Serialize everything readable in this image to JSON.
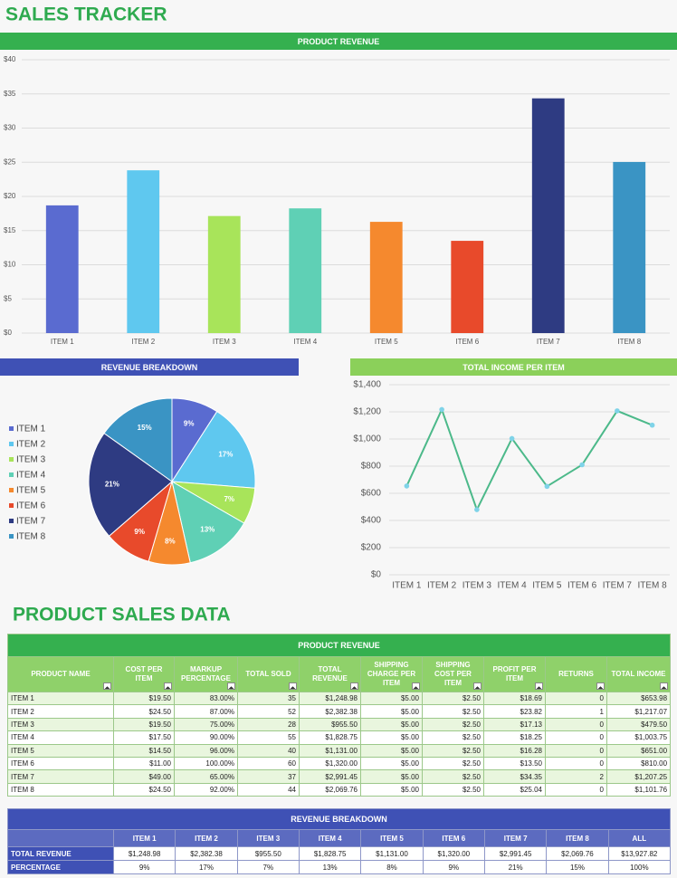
{
  "header": {
    "title": "SALES TRACKER"
  },
  "chart_data": [
    {
      "type": "bar",
      "title": "PRODUCT REVENUE",
      "banner_color": "#35b04f",
      "categories": [
        "ITEM 1",
        "ITEM 2",
        "ITEM 3",
        "ITEM 4",
        "ITEM 5",
        "ITEM 6",
        "ITEM 7",
        "ITEM 8"
      ],
      "values": [
        18.69,
        23.82,
        17.13,
        18.25,
        16.28,
        13.5,
        34.35,
        25.04
      ],
      "colors": [
        "#5a6bd0",
        "#5fc8ef",
        "#a8e45a",
        "#5fd0b5",
        "#f5892e",
        "#e84a2b",
        "#2e3b82",
        "#3a94c4"
      ],
      "ylim": [
        0,
        40
      ],
      "yticks": [
        {
          "value": 0,
          "label": "$0"
        },
        {
          "value": 5,
          "label": "$5"
        },
        {
          "value": 10,
          "label": "$10"
        },
        {
          "value": 15,
          "label": "$15"
        },
        {
          "value": 20,
          "label": "$20"
        },
        {
          "value": 25,
          "label": "$25"
        },
        {
          "value": 30,
          "label": "$30"
        },
        {
          "value": 35,
          "label": "$35"
        },
        {
          "value": 40,
          "label": "$40"
        }
      ],
      "grid": true
    },
    {
      "type": "pie",
      "title": "REVENUE BREAKDOWN",
      "banner_color": "#3f51b5",
      "categories": [
        "ITEM 1",
        "ITEM 2",
        "ITEM 3",
        "ITEM 4",
        "ITEM 5",
        "ITEM 6",
        "ITEM 7",
        "ITEM 8"
      ],
      "values": [
        9,
        17,
        7,
        13,
        8,
        9,
        21,
        15
      ],
      "value_labels": [
        "9%",
        "17%",
        "7%",
        "13%",
        "8%",
        "9%",
        "21%",
        "15%"
      ],
      "colors": [
        "#5a6bd0",
        "#5fc8ef",
        "#a8e45a",
        "#5fd0b5",
        "#f5892e",
        "#e84a2b",
        "#2e3b82",
        "#3a94c4"
      ],
      "legend": "left"
    },
    {
      "type": "line",
      "title": "TOTAL INCOME PER ITEM",
      "banner_color": "#8bd05a",
      "categories": [
        "ITEM 1",
        "ITEM 2",
        "ITEM 3",
        "ITEM 4",
        "ITEM 5",
        "ITEM 6",
        "ITEM 7",
        "ITEM 8"
      ],
      "values": [
        653.98,
        1217.07,
        479.5,
        1003.75,
        651,
        810,
        1207.25,
        1101.76
      ],
      "color": "#4cb98a",
      "marker_color": "#7fd3e8",
      "ylim": [
        0,
        1400
      ],
      "yticks": [
        {
          "value": 0,
          "label": "$0"
        },
        {
          "value": 200,
          "label": "$200"
        },
        {
          "value": 400,
          "label": "$400"
        },
        {
          "value": 600,
          "label": "$600"
        },
        {
          "value": 800,
          "label": "$800"
        },
        {
          "value": 1000,
          "label": "$1,000"
        },
        {
          "value": 1200,
          "label": "$1,200"
        },
        {
          "value": 1400,
          "label": "$1,400"
        }
      ],
      "grid": true
    }
  ],
  "section_title": "PRODUCT SALES DATA",
  "sales_table": {
    "title": "PRODUCT REVENUE",
    "columns": [
      "PRODUCT NAME",
      "COST PER ITEM",
      "MARKUP PERCENTAGE",
      "TOTAL SOLD",
      "TOTAL REVENUE",
      "SHIPPING CHARGE PER ITEM",
      "SHIPPING COST PER ITEM",
      "PROFIT PER ITEM",
      "RETURNS",
      "TOTAL INCOME"
    ],
    "rows": [
      [
        "ITEM 1",
        "$19.50",
        "83.00%",
        "35",
        "$1,248.98",
        "$5.00",
        "$2.50",
        "$18.69",
        "0",
        "$653.98"
      ],
      [
        "ITEM 2",
        "$24.50",
        "87.00%",
        "52",
        "$2,382.38",
        "$5.00",
        "$2.50",
        "$23.82",
        "1",
        "$1,217.07"
      ],
      [
        "ITEM 3",
        "$19.50",
        "75.00%",
        "28",
        "$955.50",
        "$5.00",
        "$2.50",
        "$17.13",
        "0",
        "$479.50"
      ],
      [
        "ITEM 4",
        "$17.50",
        "90.00%",
        "55",
        "$1,828.75",
        "$5.00",
        "$2.50",
        "$18.25",
        "0",
        "$1,003.75"
      ],
      [
        "ITEM 5",
        "$14.50",
        "96.00%",
        "40",
        "$1,131.00",
        "$5.00",
        "$2.50",
        "$16.28",
        "0",
        "$651.00"
      ],
      [
        "ITEM 6",
        "$11.00",
        "100.00%",
        "60",
        "$1,320.00",
        "$5.00",
        "$2.50",
        "$13.50",
        "0",
        "$810.00"
      ],
      [
        "ITEM 7",
        "$49.00",
        "65.00%",
        "37",
        "$2,991.45",
        "$5.00",
        "$2.50",
        "$34.35",
        "2",
        "$1,207.25"
      ],
      [
        "ITEM 8",
        "$24.50",
        "92.00%",
        "44",
        "$2,069.76",
        "$5.00",
        "$2.50",
        "$25.04",
        "0",
        "$1,101.76"
      ]
    ]
  },
  "breakdown_table": {
    "title": "REVENUE BREAKDOWN",
    "columns": [
      "ITEM 1",
      "ITEM 2",
      "ITEM 3",
      "ITEM 4",
      "ITEM 5",
      "ITEM 6",
      "ITEM 7",
      "ITEM 8",
      "ALL"
    ],
    "rows": [
      {
        "label": "TOTAL REVENUE",
        "cells": [
          "$1,248.98",
          "$2,382.38",
          "$955.50",
          "$1,828.75",
          "$1,131.00",
          "$1,320.00",
          "$2,991.45",
          "$2,069.76",
          "$13,927.82"
        ]
      },
      {
        "label": "PERCENTAGE",
        "cells": [
          "9%",
          "17%",
          "7%",
          "13%",
          "8%",
          "9%",
          "21%",
          "15%",
          "100%"
        ]
      }
    ]
  }
}
